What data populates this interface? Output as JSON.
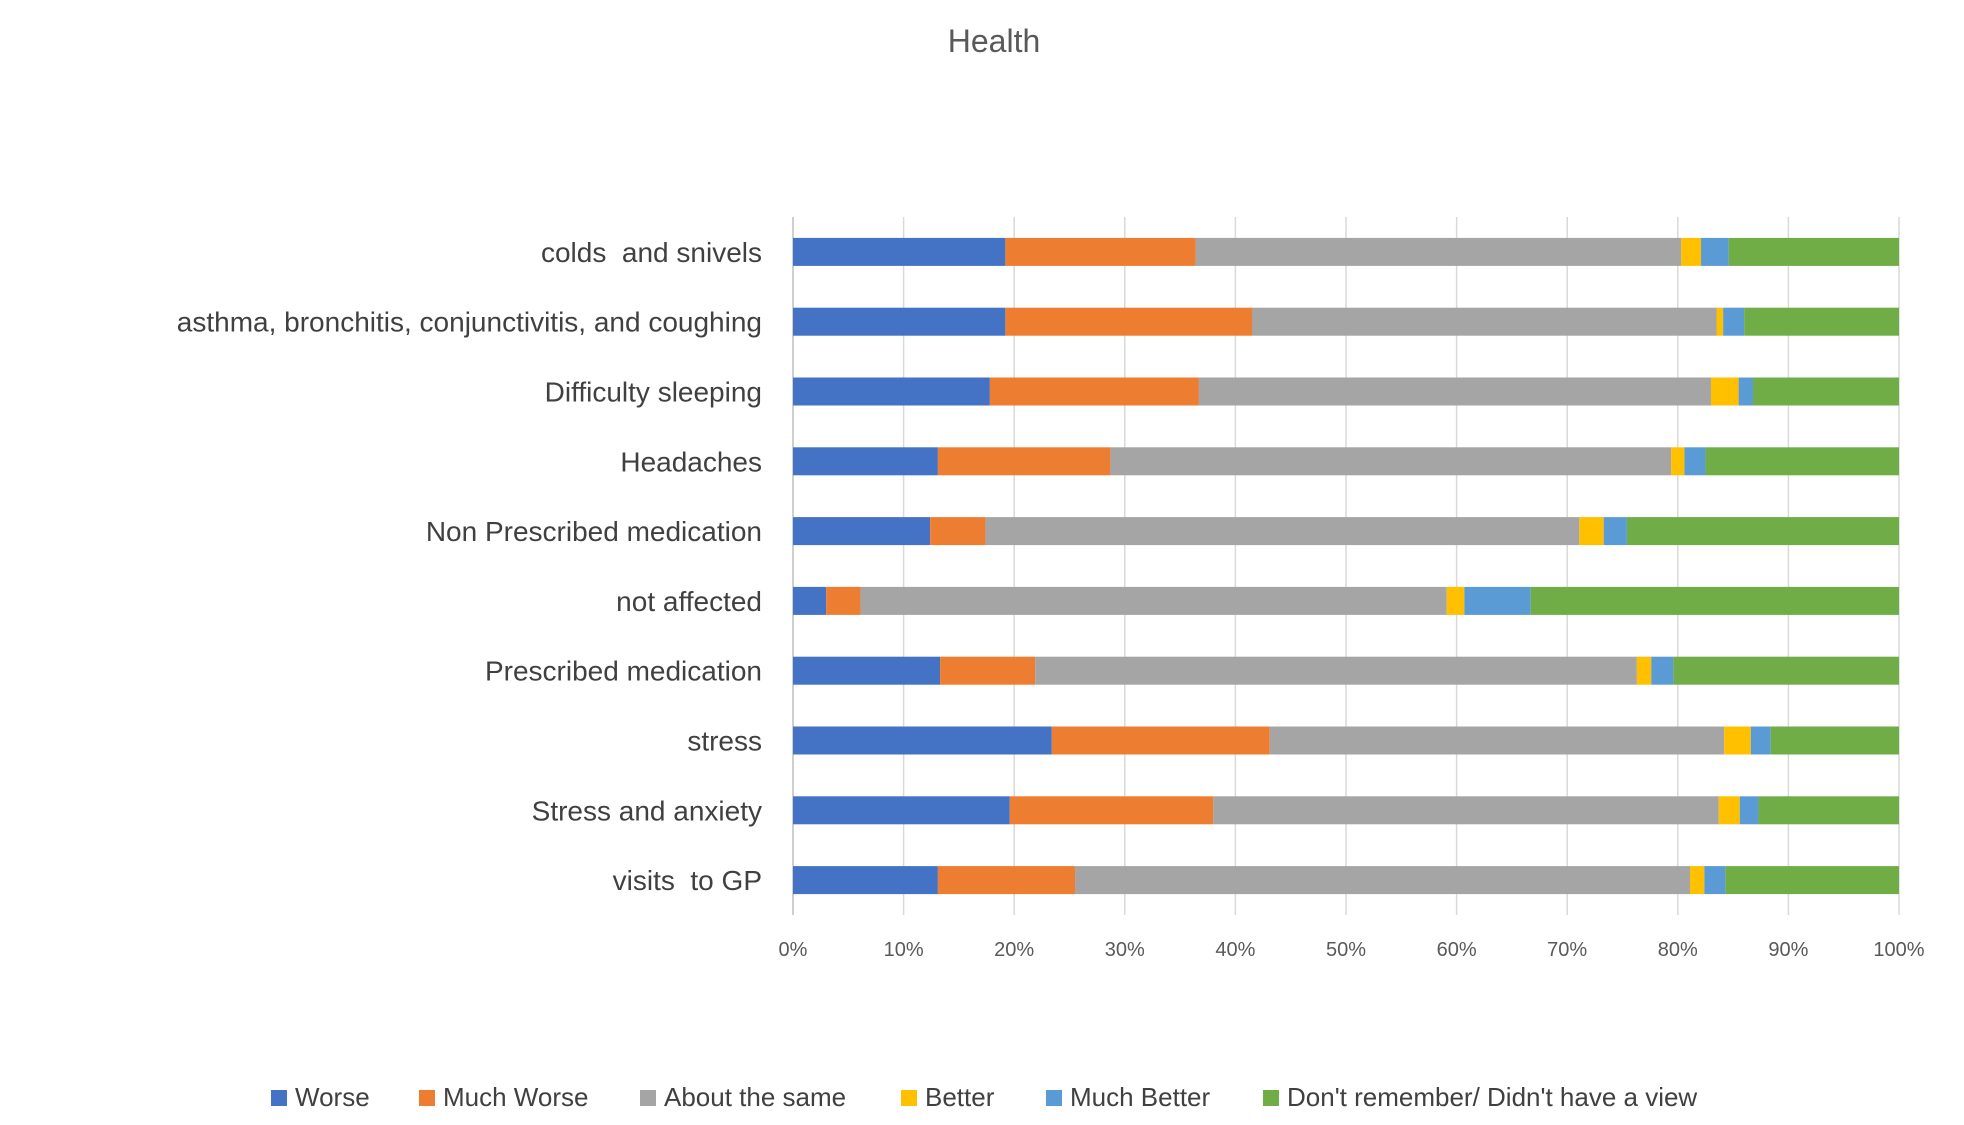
{
  "chart_data": {
    "type": "bar",
    "orientation": "horizontal",
    "stacked": "percent",
    "title": "Health",
    "xlabel": "",
    "ylabel": "",
    "xlim": [
      0,
      100
    ],
    "x_ticks": [
      "0%",
      "10%",
      "20%",
      "30%",
      "40%",
      "50%",
      "60%",
      "70%",
      "80%",
      "90%",
      "100%"
    ],
    "grid": true,
    "legend_position": "bottom",
    "categories": [
      "colds  and snivels",
      "asthma, bronchitis, conjunctivitis, and coughing",
      "Difficulty sleeping",
      "Headaches",
      "Non Prescribed medication",
      "not affected",
      "Prescribed medication",
      "stress",
      "Stress and anxiety",
      "visits  to GP"
    ],
    "series": [
      {
        "name": "Worse",
        "color": "#4472C4",
        "values": [
          19.2,
          19.2,
          17.8,
          13.1,
          12.4,
          3.0,
          13.3,
          23.4,
          19.6,
          13.1
        ]
      },
      {
        "name": "Much Worse",
        "color": "#ED7D31",
        "values": [
          17.2,
          22.3,
          18.9,
          15.6,
          5.0,
          3.1,
          8.6,
          19.7,
          18.4,
          12.4
        ]
      },
      {
        "name": "About the same",
        "color": "#A5A5A5",
        "values": [
          43.9,
          42.0,
          46.3,
          50.7,
          53.7,
          53.0,
          54.4,
          41.1,
          45.7,
          55.6
        ]
      },
      {
        "name": "Better",
        "color": "#FFC000",
        "values": [
          1.8,
          0.6,
          2.5,
          1.2,
          2.2,
          1.6,
          1.3,
          2.4,
          1.9,
          1.3
        ]
      },
      {
        "name": "Much Better",
        "color": "#5B9BD5",
        "values": [
          2.5,
          1.9,
          1.3,
          1.9,
          2.1,
          6.0,
          2.0,
          1.8,
          1.7,
          1.9
        ]
      },
      {
        "name": "Don't remember/ Didn't have a view",
        "color": "#70AD47",
        "values": [
          15.4,
          14.0,
          13.2,
          17.5,
          24.6,
          33.3,
          20.4,
          11.6,
          12.7,
          15.7
        ]
      }
    ]
  }
}
